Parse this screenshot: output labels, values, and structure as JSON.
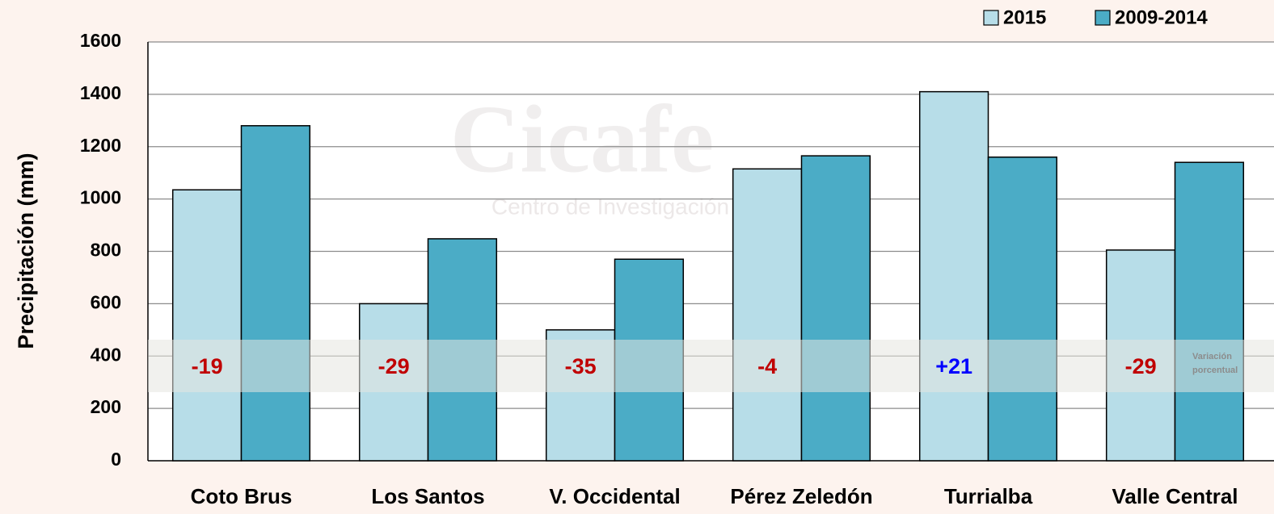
{
  "chart_data": {
    "type": "bar",
    "y_label": "Precipitación (mm)",
    "categories": [
      "Coto Brus",
      "Los Santos",
      "V. Occidental",
      "Pérez Zeledón",
      "Turrialba",
      "Valle Central"
    ],
    "series": [
      {
        "name": "2015",
        "color": "#b7dde8",
        "values": [
          1035,
          600,
          500,
          1115,
          1410,
          805
        ]
      },
      {
        "name": "2009-2014",
        "color": "#4bacc6",
        "values": [
          1280,
          848,
          770,
          1165,
          1160,
          1140
        ]
      }
    ],
    "ylim": [
      0,
      1600
    ],
    "yticks": [
      0,
      200,
      400,
      600,
      800,
      1000,
      1200,
      1400,
      1600
    ],
    "grid": true,
    "legend": "top-right",
    "annotations": [
      {
        "text": "-19",
        "color": "#c00000"
      },
      {
        "text": "-29",
        "color": "#c00000"
      },
      {
        "text": "-35",
        "color": "#c00000"
      },
      {
        "text": "-4",
        "color": "#c00000"
      },
      {
        "text": "+21",
        "color": "#0000ff"
      },
      {
        "text": "-29",
        "color": "#c00000"
      }
    ],
    "band_label": [
      "Variación",
      "porcentual"
    ],
    "watermark": {
      "title": "Cicafe",
      "subtitle": "Centro de Investigación"
    }
  }
}
